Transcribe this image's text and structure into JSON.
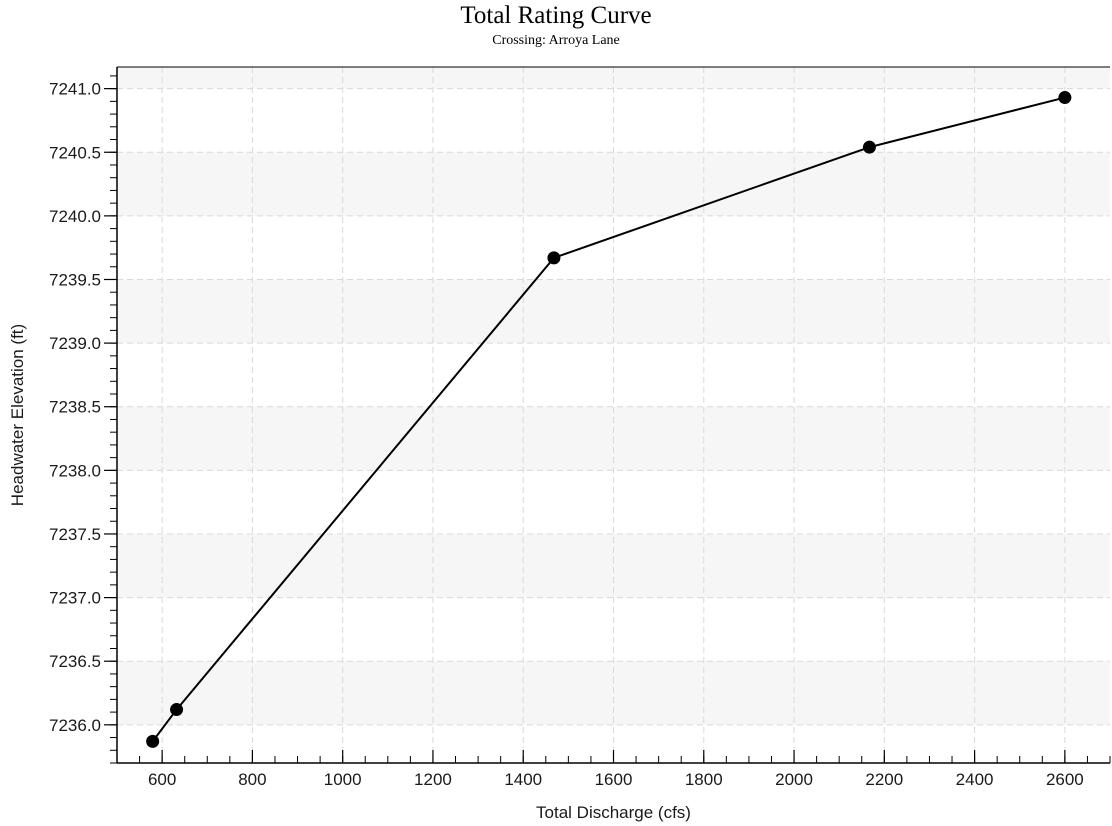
{
  "chart_data": {
    "type": "line",
    "title": "Total Rating Curve",
    "subtitle": "Crossing: Arroya Lane",
    "xlabel": "Total Discharge (cfs)",
    "ylabel": "Headwater Elevation (ft)",
    "xlim": [
      500,
      2700
    ],
    "ylim": [
      7235.7,
      7241.17
    ],
    "x_ticks": [
      600,
      800,
      1000,
      1200,
      1400,
      1600,
      1800,
      2000,
      2200,
      2400,
      2600
    ],
    "y_ticks": [
      "7236.0",
      "7236.5",
      "7237.0",
      "7237.5",
      "7238.0",
      "7238.5",
      "7239.0",
      "7239.5",
      "7240.0",
      "7240.5",
      "7241.0"
    ],
    "grid": true,
    "series": [
      {
        "x": [
          579,
          632,
          1468,
          2167,
          2600
        ],
        "y": [
          7235.87,
          7236.12,
          7239.67,
          7240.54,
          7240.93
        ],
        "color": "#000000",
        "marker": "circle"
      }
    ]
  }
}
